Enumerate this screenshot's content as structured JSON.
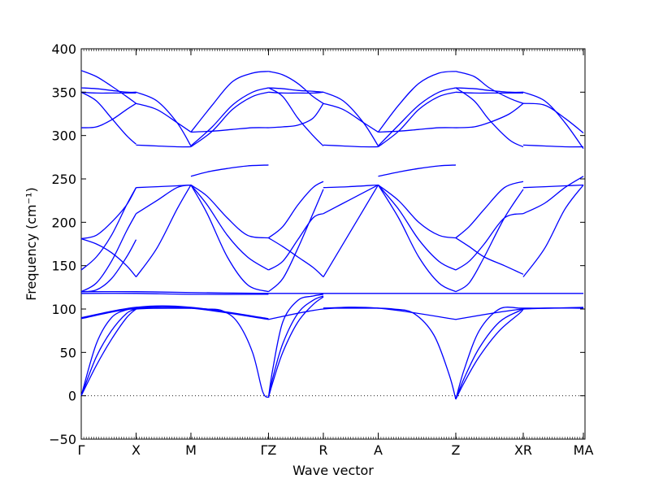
{
  "chart_data": {
    "type": "line",
    "title": "",
    "xlabel": "Wave vector",
    "ylabel": "Frequency (cm⁻¹)",
    "ylim": [
      -50,
      400
    ],
    "y_ticks": [
      -50,
      0,
      50,
      100,
      150,
      200,
      250,
      300,
      350,
      400
    ],
    "line_color": "#0000ff",
    "zero_line": {
      "y": 0,
      "style": "dotted",
      "color": "#000000"
    },
    "high_symmetry_points": [
      {
        "label": "Γ",
        "x": 0.0
      },
      {
        "label": "X",
        "x": 0.1089
      },
      {
        "label": "M",
        "x": 0.2177
      },
      {
        "label": "ΓZ",
        "x": 0.3717
      },
      {
        "label": "R",
        "x": 0.4806
      },
      {
        "label": "A",
        "x": 0.5895
      },
      {
        "label": "Z",
        "x": 0.7435
      },
      {
        "label": "XR",
        "x": 0.8774
      },
      {
        "label": "MA",
        "x": 0.9968
      }
    ],
    "branch_groups": [
      {
        "name": "acoustic",
        "segments": [
          {
            "x": [
              0.0,
              0.03,
              0.06,
              0.09,
              0.1089
            ],
            "curves": [
              [
                0,
                60,
                90,
                99,
                100
              ],
              [
                0,
                45,
                75,
                95,
                100
              ],
              [
                0,
                35,
                65,
                90,
                100
              ]
            ]
          },
          {
            "x": [
              0.1089,
              0.15,
              0.2177
            ],
            "curves": [
              [
                100,
                101,
                101
              ],
              [
                101,
                101,
                101
              ],
              [
                102,
                101,
                101
              ]
            ]
          },
          {
            "x": [
              0.2177,
              0.25,
              0.28,
              0.31,
              0.34,
              0.36,
              0.3717
            ],
            "curves": [
              [
                101,
                100,
                98,
                85,
                50,
                5,
                -2
              ]
            ]
          },
          {
            "x": [
              0.3717,
              0.38,
              0.4,
              0.43,
              0.46,
              0.4806
            ],
            "curves": [
              [
                -2,
                30,
                85,
                110,
                115,
                117
              ],
              [
                -2,
                20,
                60,
                95,
                110,
                115
              ],
              [
                -2,
                15,
                50,
                85,
                105,
                114
              ]
            ]
          },
          {
            "x": [
              0.4806,
              0.53,
              0.5895
            ],
            "curves": [
              [
                101,
                101,
                101
              ],
              [
                101,
                102,
                101
              ]
            ]
          },
          {
            "x": [
              0.5895,
              0.62,
              0.66,
              0.7,
              0.73,
              0.7435
            ],
            "curves": [
              [
                101,
                100,
                95,
                70,
                25,
                -4
              ]
            ]
          },
          {
            "x": [
              0.7435,
              0.76,
              0.79,
              0.83,
              0.87,
              0.8774
            ],
            "curves": [
              [
                -4,
                30,
                75,
                100,
                101,
                101
              ],
              [
                -4,
                20,
                55,
                85,
                98,
                100
              ],
              [
                -4,
                15,
                45,
                75,
                95,
                100
              ]
            ]
          },
          {
            "x": [
              0.8774,
              0.93,
              0.9968
            ],
            "curves": [
              [
                100,
                101,
                101
              ],
              [
                101,
                101,
                102
              ]
            ]
          }
        ]
      },
      {
        "name": "flat",
        "segments": [
          {
            "x": [
              0.0,
              0.1089,
              0.2177,
              0.3717
            ],
            "curves": [
              [
                89,
                101,
                101,
                88
              ],
              [
                90,
                102,
                102,
                89
              ],
              [
                118,
                118,
                117,
                117
              ],
              [
                120,
                120,
                119,
                118
              ]
            ]
          },
          {
            "x": [
              0.3717,
              0.4806,
              0.5895,
              0.7435
            ],
            "curves": [
              [
                88,
                100,
                101,
                88
              ],
              [
                118,
                118,
                118,
                118
              ]
            ]
          },
          {
            "x": [
              0.7435,
              0.8774,
              0.9968
            ],
            "curves": [
              [
                88,
                100,
                101
              ],
              [
                118,
                118,
                118
              ]
            ]
          }
        ]
      },
      {
        "name": "optical-middle",
        "segments": [
          {
            "x": [
              0.0,
              0.03,
              0.06,
              0.09,
              0.1089
            ],
            "curves": [
              [
                181,
                185,
                200,
                220,
                240
              ],
              [
                145,
                160,
                185,
                220,
                240
              ],
              [
                120,
                130,
                155,
                190,
                210
              ],
              [
                120,
                122,
                135,
                160,
                180
              ],
              [
                181,
                175,
                165,
                150,
                137
              ]
            ]
          },
          {
            "x": [
              0.1089,
              0.15,
              0.19,
              0.2177
            ],
            "curves": [
              [
                240,
                241,
                242,
                243
              ],
              [
                210,
                225,
                240,
                243
              ],
              [
                137,
                170,
                215,
                243
              ]
            ]
          },
          {
            "x": [
              0.2177,
              0.25,
              0.29,
              0.33,
              0.3717
            ],
            "curves": [
              [
                253,
                258,
                262,
                265,
                266
              ],
              [
                243,
                230,
                205,
                185,
                182
              ],
              [
                243,
                220,
                185,
                160,
                145
              ],
              [
                243,
                210,
                160,
                128,
                120
              ]
            ]
          },
          {
            "x": [
              0.3717,
              0.4,
              0.43,
              0.46,
              0.4806
            ],
            "curves": [
              [
                182,
                195,
                220,
                240,
                247
              ],
              [
                182,
                172,
                160,
                148,
                137
              ],
              [
                145,
                155,
                180,
                205,
                210
              ],
              [
                120,
                135,
                170,
                210,
                238
              ]
            ]
          },
          {
            "x": [
              0.4806,
              0.53,
              0.5895
            ],
            "curves": [
              [
                240,
                241,
                243
              ],
              [
                210,
                225,
                243
              ],
              [
                137,
                185,
                243
              ]
            ]
          },
          {
            "x": [
              0.5895,
              0.63,
              0.67,
              0.71,
              0.7435
            ],
            "curves": [
              [
                253,
                258,
                262,
                265,
                266
              ],
              [
                243,
                225,
                200,
                185,
                182
              ],
              [
                243,
                215,
                180,
                155,
                145
              ],
              [
                243,
                205,
                160,
                130,
                120
              ]
            ]
          },
          {
            "x": [
              0.7435,
              0.77,
              0.8,
              0.84,
              0.8774
            ],
            "curves": [
              [
                182,
                195,
                215,
                240,
                247
              ],
              [
                182,
                172,
                160,
                150,
                140
              ],
              [
                145,
                155,
                175,
                205,
                210
              ],
              [
                120,
                130,
                160,
                205,
                238
              ]
            ]
          },
          {
            "x": [
              0.8774,
              0.92,
              0.96,
              0.9968
            ],
            "curves": [
              [
                240,
                241,
                242,
                243
              ],
              [
                210,
                222,
                240,
                253
              ],
              [
                137,
                170,
                215,
                243
              ]
            ]
          }
        ]
      },
      {
        "name": "optical-high",
        "segments": [
          {
            "x": [
              0.0,
              0.03,
              0.06,
              0.09,
              0.1089
            ],
            "curves": [
              [
                375,
                368,
                357,
                345,
                337
              ],
              [
                355,
                354,
                352,
                350,
                350
              ],
              [
                350,
                349,
                349,
                349,
                349
              ],
              [
                309,
                310,
                318,
                330,
                337
              ],
              [
                350,
                340,
                320,
                300,
                290
              ]
            ]
          },
          {
            "x": [
              0.1089,
              0.15,
              0.19,
              0.2177
            ],
            "curves": [
              [
                337,
                330,
                315,
                304
              ],
              [
                350,
                340,
                315,
                288
              ],
              [
                289,
                288,
                287,
                287
              ]
            ]
          },
          {
            "x": [
              0.2177,
              0.26,
              0.3,
              0.34,
              0.3717
            ],
            "curves": [
              [
                304,
                305,
                307,
                309,
                309
              ],
              [
                304,
                335,
                362,
                372,
                374
              ],
              [
                288,
                310,
                335,
                350,
                355
              ],
              [
                287,
                305,
                330,
                345,
                350
              ]
            ]
          },
          {
            "x": [
              0.3717,
              0.4,
              0.43,
              0.46,
              0.4806
            ],
            "curves": [
              [
                374,
                370,
                360,
                345,
                337
              ],
              [
                355,
                354,
                352,
                351,
                350
              ],
              [
                350,
                349,
                349,
                349,
                350
              ],
              [
                309,
                310,
                312,
                320,
                337
              ],
              [
                355,
                345,
                320,
                300,
                288
              ]
            ]
          },
          {
            "x": [
              0.4806,
              0.52,
              0.56,
              0.5895
            ],
            "curves": [
              [
                337,
                330,
                315,
                304
              ],
              [
                350,
                340,
                315,
                288
              ],
              [
                289,
                288,
                287,
                287
              ]
            ]
          },
          {
            "x": [
              0.5895,
              0.63,
              0.67,
              0.71,
              0.7435
            ],
            "curves": [
              [
                304,
                305,
                307,
                309,
                309
              ],
              [
                304,
                335,
                360,
                372,
                374
              ],
              [
                288,
                312,
                335,
                350,
                355
              ],
              [
                287,
                305,
                330,
                345,
                350
              ]
            ]
          },
          {
            "x": [
              0.7435,
              0.78,
              0.81,
              0.85,
              0.8774
            ],
            "curves": [
              [
                374,
                368,
                355,
                343,
                337
              ],
              [
                355,
                354,
                352,
                350,
                350
              ],
              [
                350,
                349,
                349,
                349,
                349
              ],
              [
                309,
                310,
                315,
                325,
                337
              ],
              [
                355,
                340,
                318,
                295,
                287
              ]
            ]
          },
          {
            "x": [
              0.8774,
              0.92,
              0.96,
              0.9968
            ],
            "curves": [
              [
                337,
                335,
                320,
                303
              ],
              [
                350,
                340,
                315,
                285
              ],
              [
                289,
                288,
                287,
                287
              ]
            ]
          }
        ]
      }
    ]
  }
}
